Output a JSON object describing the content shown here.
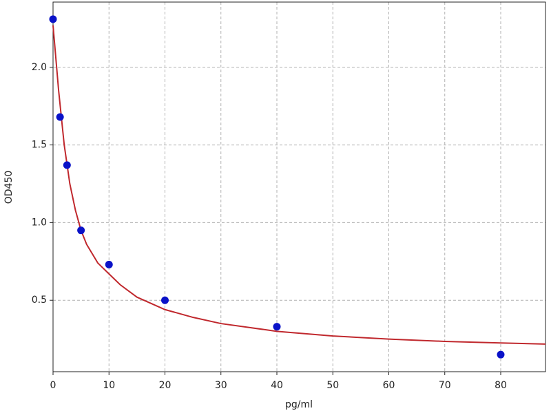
{
  "chart_data": {
    "type": "scatter",
    "xlabel": "pg/ml",
    "ylabel": "OD450",
    "xlim": [
      0,
      88
    ],
    "ylim": [
      0.04,
      2.42
    ],
    "xticks": [
      0,
      10,
      20,
      30,
      40,
      50,
      60,
      70,
      80
    ],
    "yticks": [
      0.5,
      {
        "value": 1,
        "label": "1.0"
      },
      1.5,
      {
        "value": 2,
        "label": "2.0"
      }
    ],
    "grid": true,
    "series": [
      {
        "type": "line",
        "color": "#c0282d",
        "x": [
          0,
          1,
          2,
          3,
          4,
          5,
          6,
          8,
          10,
          12,
          15,
          20,
          25,
          30,
          40,
          50,
          60,
          70,
          80,
          88
        ],
        "values": [
          2.27,
          1.85,
          1.5,
          1.25,
          1.08,
          0.95,
          0.86,
          0.74,
          0.67,
          0.6,
          0.52,
          0.44,
          0.39,
          0.35,
          0.3,
          0.27,
          0.25,
          0.235,
          0.225,
          0.218
        ]
      },
      {
        "type": "scatter",
        "color": "#0a12c8",
        "x": [
          0,
          1.25,
          2.5,
          5,
          10,
          20,
          40,
          80
        ],
        "values": [
          2.31,
          1.68,
          1.37,
          0.95,
          0.73,
          0.5,
          0.33,
          0.15
        ]
      }
    ]
  }
}
